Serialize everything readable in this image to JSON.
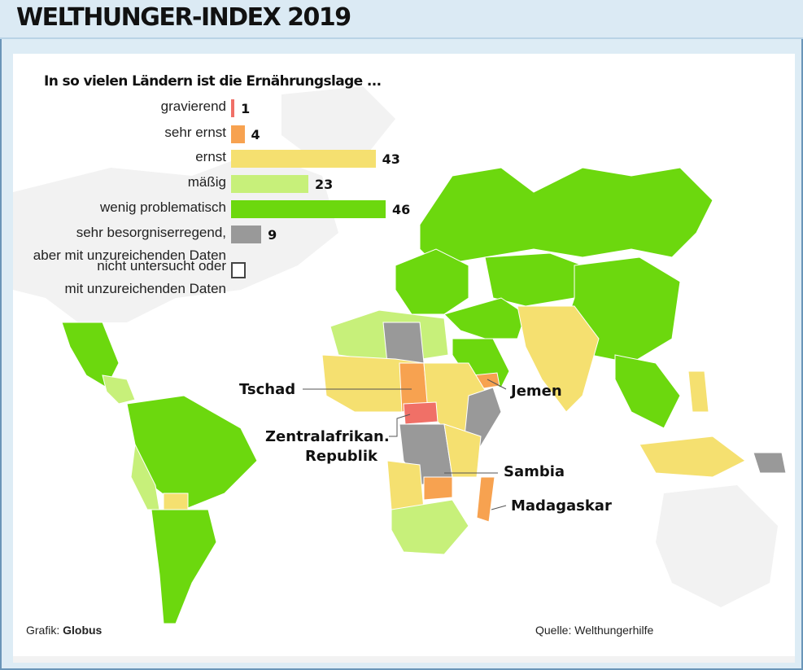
{
  "header": {
    "title": "WELTHUNGER-INDEX 2019"
  },
  "chart": {
    "subtitle": "In so vielen Ländern ist die Ernährungslage ...",
    "callouts": {
      "tschad": "Tschad",
      "jemen": "Jemen",
      "zentralafrika_1": "Zentralafrikan.",
      "zentralafrika_2": "Republik",
      "sambia": "Sambia",
      "madagaskar": "Madagaskar"
    }
  },
  "chart_data": {
    "type": "bar",
    "orientation": "horizontal",
    "title": "In so vielen Ländern ist die Ernährungslage ...",
    "categories": [
      "gravierend",
      "sehr ernst",
      "ernst",
      "mäßig",
      "wenig problematisch",
      "sehr besorgniserregend, aber mit unzureichenden Daten",
      "nicht untersucht oder mit unzureichenden Daten"
    ],
    "values": [
      1,
      4,
      43,
      23,
      46,
      9,
      null
    ],
    "value_labels": [
      "1",
      "4",
      "43",
      "23",
      "46",
      "9",
      ""
    ],
    "colors": [
      "#f07067",
      "#f7a250",
      "#f5e070",
      "#c7f07a",
      "#6cd80e",
      "#999999",
      "#ffffff"
    ],
    "legend_lines": [
      [
        "gravierend"
      ],
      [
        "sehr ernst"
      ],
      [
        "ernst"
      ],
      [
        "mäßig"
      ],
      [
        "wenig problematisch"
      ],
      [
        "sehr besorgniserregend,",
        "aber mit unzureichenden Daten"
      ],
      [
        "nicht untersucht oder",
        "mit unzureichenden Daten"
      ]
    ],
    "max": 46
  },
  "footer": {
    "credit_prefix": "Grafik: ",
    "credit_name": "Globus",
    "source": "Quelle: Welthungerhilfe"
  }
}
